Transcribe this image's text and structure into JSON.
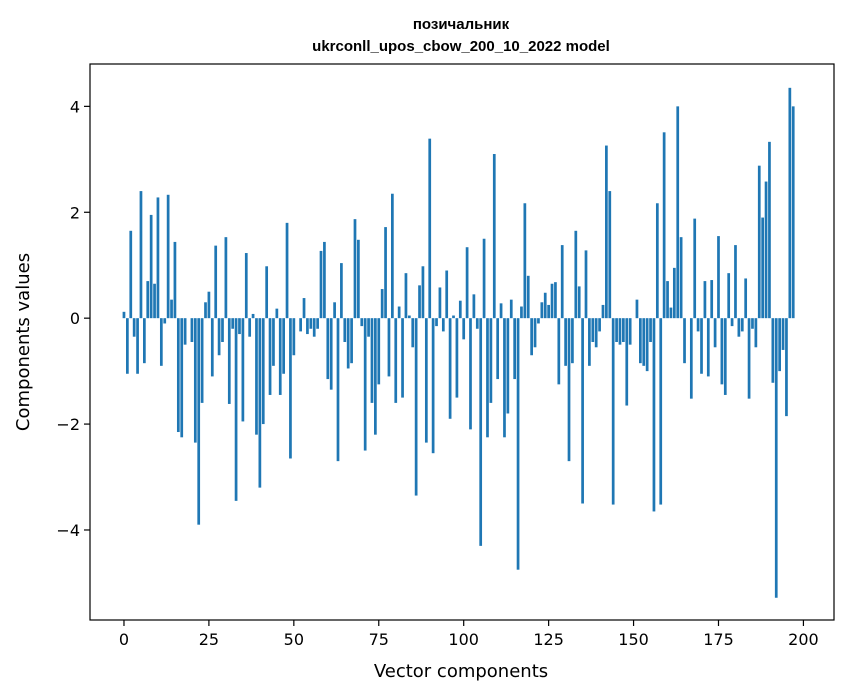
{
  "chart_data": {
    "type": "bar",
    "title_line1": "позичальник",
    "title_line2": "ukrconll_upos_cbow_200_10_2022 model",
    "xlabel": "Vector components",
    "ylabel": "Components values",
    "xlim": [
      -10,
      209
    ],
    "ylim": [
      -5.7,
      4.8
    ],
    "xticks": [
      0,
      25,
      50,
      75,
      100,
      125,
      150,
      175,
      200
    ],
    "yticks": [
      -4,
      -2,
      0,
      2,
      4
    ],
    "ytick_labels": [
      "−4",
      "−2",
      "0",
      "2",
      "4"
    ],
    "bar_color": "#1f77b4",
    "grid": false,
    "values": [
      0.12,
      -1.05,
      1.65,
      -0.35,
      -1.05,
      2.4,
      -0.85,
      0.7,
      1.95,
      0.65,
      2.28,
      -0.9,
      -0.1,
      2.33,
      0.35,
      1.44,
      -2.15,
      -2.25,
      -0.5,
      0.0,
      -0.45,
      -2.35,
      -3.9,
      -1.6,
      0.3,
      0.5,
      -1.1,
      1.37,
      -0.7,
      -0.45,
      1.53,
      -1.62,
      -0.2,
      -3.45,
      -0.3,
      -1.95,
      1.23,
      -0.35,
      0.08,
      -2.2,
      -3.2,
      -2.0,
      0.98,
      -1.45,
      -0.9,
      0.18,
      -1.45,
      -1.05,
      1.8,
      -2.65,
      -0.7,
      0.0,
      -0.25,
      0.38,
      -0.3,
      -0.2,
      -0.35,
      -0.2,
      1.27,
      1.44,
      -1.15,
      -1.35,
      0.3,
      -2.7,
      1.04,
      -0.45,
      -0.95,
      -0.85,
      1.87,
      1.48,
      -0.15,
      -2.5,
      -0.35,
      -1.6,
      -2.2,
      -1.25,
      0.55,
      1.72,
      -1.1,
      2.35,
      -1.6,
      0.22,
      -1.5,
      0.85,
      0.05,
      -0.55,
      -3.35,
      0.62,
      0.98,
      -2.35,
      3.39,
      -2.55,
      -0.15,
      0.58,
      -0.25,
      0.9,
      -1.9,
      0.05,
      -1.5,
      0.33,
      -0.4,
      1.34,
      -2.1,
      0.45,
      -0.2,
      -4.3,
      1.5,
      -2.25,
      -1.6,
      3.1,
      -1.15,
      0.28,
      -2.25,
      -1.8,
      0.35,
      -1.15,
      -4.75,
      0.22,
      2.17,
      0.8,
      -0.7,
      -0.55,
      -0.1,
      0.3,
      0.48,
      0.25,
      0.65,
      0.68,
      -1.25,
      1.38,
      -0.9,
      -2.7,
      -0.85,
      1.65,
      0.6,
      -3.5,
      1.28,
      -0.9,
      -0.45,
      -0.55,
      -0.25,
      0.25,
      3.26,
      2.4,
      -3.52,
      -0.45,
      -0.5,
      -0.45,
      -1.65,
      -0.5,
      0.0,
      0.35,
      -0.85,
      -0.9,
      -1.0,
      -0.45,
      -3.65,
      2.17,
      -3.52,
      3.51,
      0.7,
      0.2,
      0.95,
      4.0,
      1.53,
      -0.85,
      0.0,
      -1.52,
      1.88,
      -0.25,
      -1.05,
      0.7,
      -1.1,
      0.72,
      -0.55,
      1.55,
      -1.25,
      -1.45,
      0.85,
      -0.15,
      1.38,
      -0.35,
      -0.25,
      0.75,
      -1.52,
      -0.2,
      -0.55,
      2.88,
      1.9,
      2.58,
      3.33,
      -1.22,
      -5.28,
      -1.0,
      -0.6,
      -1.85,
      4.35,
      4.0
    ]
  }
}
